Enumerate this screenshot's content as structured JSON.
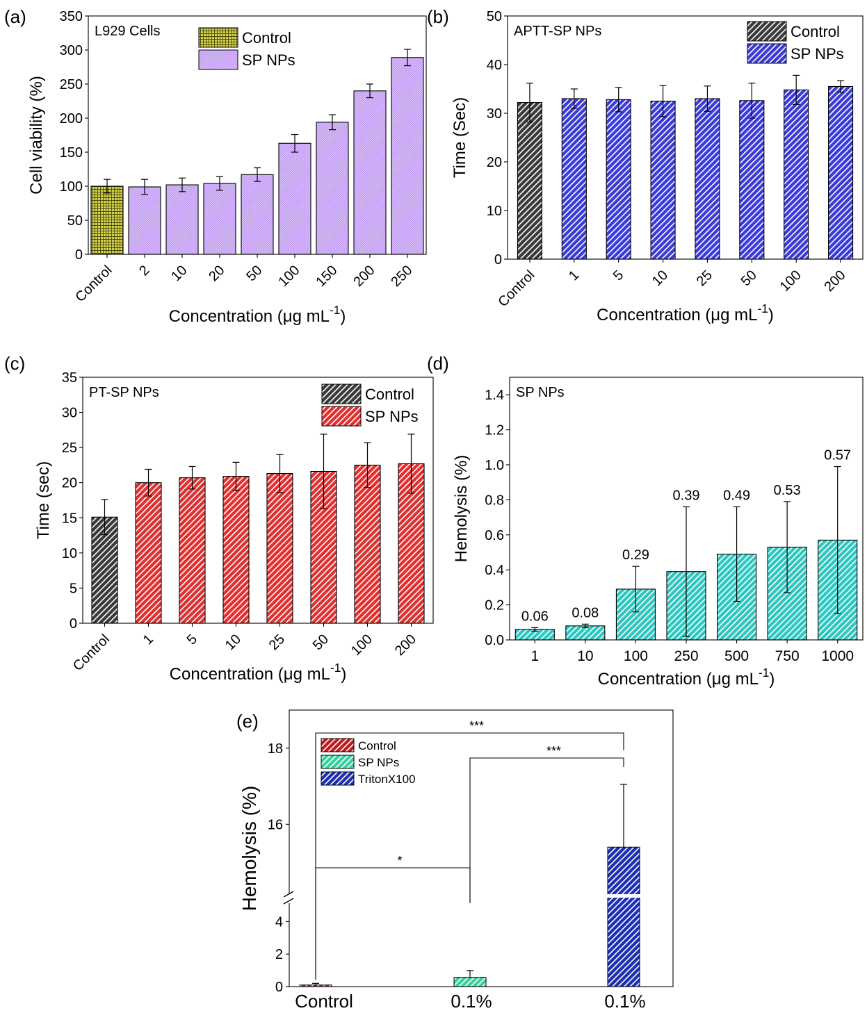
{
  "chart_data": [
    {
      "panel_label": "(a)",
      "type": "bar",
      "annotation": "L929 Cells",
      "categories": [
        "Control",
        "2",
        "10",
        "20",
        "50",
        "100",
        "150",
        "200",
        "250"
      ],
      "series": [
        {
          "name": "Control",
          "color": "#d4d34a",
          "pattern": "grid",
          "values": [
            100,
            null,
            null,
            null,
            null,
            null,
            null,
            null,
            null
          ],
          "errors": [
            10,
            null,
            null,
            null,
            null,
            null,
            null,
            null,
            null
          ]
        },
        {
          "name": "SP NPs",
          "color": "#c29cf2",
          "pattern": "fine",
          "values": [
            null,
            99,
            102,
            104,
            117,
            163,
            194,
            240,
            289
          ],
          "errors": [
            null,
            11,
            10,
            10,
            10,
            13,
            11,
            10,
            12
          ]
        }
      ],
      "xlabel": "Concentration (μg mL⁻¹)",
      "ylabel": "Cell viability (%)",
      "ylim": [
        0,
        350
      ],
      "yticks": [
        0,
        50,
        100,
        150,
        200,
        250,
        300,
        350
      ],
      "legend": "top"
    },
    {
      "panel_label": "(b)",
      "type": "bar",
      "annotation": "APTT-SP NPs",
      "categories": [
        "Control",
        "1",
        "5",
        "10",
        "25",
        "50",
        "100",
        "200"
      ],
      "series": [
        {
          "name": "Control",
          "color": "#3a3a3a",
          "pattern": "hatch",
          "values": [
            32.2,
            null,
            null,
            null,
            null,
            null,
            null,
            null
          ],
          "errors": [
            4,
            null,
            null,
            null,
            null,
            null,
            null,
            null
          ]
        },
        {
          "name": "SP NPs",
          "color": "#3b3bd9",
          "pattern": "hatch",
          "values": [
            null,
            33,
            32.8,
            32.5,
            33,
            32.6,
            34.8,
            35.5
          ],
          "errors": [
            null,
            2,
            2.5,
            3.2,
            2.6,
            3.6,
            3,
            1.2
          ]
        }
      ],
      "xlabel": "Concentration (μg mL⁻¹)",
      "ylabel": "Time (Sec)",
      "ylim": [
        0,
        50
      ],
      "yticks": [
        0,
        10,
        20,
        30,
        40,
        50
      ],
      "legend": "top-right"
    },
    {
      "panel_label": "(c)",
      "type": "bar",
      "annotation": "PT-SP NPs",
      "categories": [
        "Control",
        "1",
        "5",
        "10",
        "25",
        "50",
        "100",
        "200"
      ],
      "series": [
        {
          "name": "Control",
          "color": "#3a3a3a",
          "pattern": "hatch",
          "values": [
            15.1,
            null,
            null,
            null,
            null,
            null,
            null,
            null
          ],
          "errors": [
            2.5,
            null,
            null,
            null,
            null,
            null,
            null,
            null
          ]
        },
        {
          "name": "SP NPs",
          "color": "#e03030",
          "pattern": "hatch",
          "values": [
            null,
            20,
            20.7,
            20.9,
            21.3,
            21.6,
            22.5,
            22.7
          ],
          "errors": [
            null,
            1.9,
            1.6,
            2,
            2.7,
            5.3,
            3.2,
            4.2
          ]
        }
      ],
      "xlabel": "Concentration (μg mL⁻¹)",
      "ylabel": "Time (sec)",
      "ylim": [
        0,
        35
      ],
      "yticks": [
        0,
        5,
        10,
        15,
        20,
        25,
        30,
        35
      ],
      "legend": "top-right"
    },
    {
      "panel_label": "(d)",
      "type": "bar",
      "annotation": "SP NPs",
      "categories": [
        "1",
        "10",
        "100",
        "250",
        "500",
        "750",
        "1000"
      ],
      "series": [
        {
          "name": "",
          "color": "#2ec7c0",
          "pattern": "hatch",
          "values": [
            0.06,
            0.08,
            0.29,
            0.39,
            0.49,
            0.53,
            0.57
          ],
          "errors": [
            0.01,
            0.01,
            0.13,
            0.37,
            0.27,
            0.26,
            0.42
          ]
        }
      ],
      "data_labels": [
        "0.06",
        "0.08",
        "0.29",
        "0.39",
        "0.49",
        "0.53",
        "0.57"
      ],
      "xlabel": "Concentration (μg mL⁻¹)",
      "ylabel": "Hemolysis (%)",
      "ylim": [
        0,
        1.5
      ],
      "yticks": [
        "0.0",
        "0.2",
        "0.4",
        "0.6",
        "0.8",
        "1.0",
        "1.2",
        "1.4"
      ],
      "legend": "none"
    },
    {
      "panel_label": "(e)",
      "type": "bar",
      "categories": [
        "Control",
        "0.1%",
        "0.1%"
      ],
      "series": [
        {
          "name": "Control",
          "color": "#b82020",
          "pattern": "hatch",
          "values": [
            0.1,
            null,
            null
          ],
          "errors": [
            0.1,
            null,
            null
          ]
        },
        {
          "name": "SP NPs",
          "color": "#35d0a0",
          "pattern": "hatch",
          "values": [
            null,
            0.57,
            null
          ],
          "errors": [
            null,
            0.42,
            null
          ]
        },
        {
          "name": "TritonX100",
          "color": "#1c2fb3",
          "pattern": "hatch",
          "values": [
            null,
            null,
            15.4
          ],
          "errors": [
            null,
            null,
            1.65
          ]
        }
      ],
      "ylabel": "Hemolysis (%)",
      "axis_break": {
        "lower": [
          0,
          5
        ],
        "upper": [
          14.2,
          19
        ]
      },
      "yticks_lower": [
        0,
        2,
        4
      ],
      "yticks_upper": [
        16,
        18
      ],
      "significance": [
        {
          "between": [
            0,
            2
          ],
          "label": "***"
        },
        {
          "between": [
            1,
            2
          ],
          "label": "***"
        },
        {
          "between": [
            0,
            1
          ],
          "label": "*"
        }
      ],
      "legend": "top-left"
    }
  ]
}
